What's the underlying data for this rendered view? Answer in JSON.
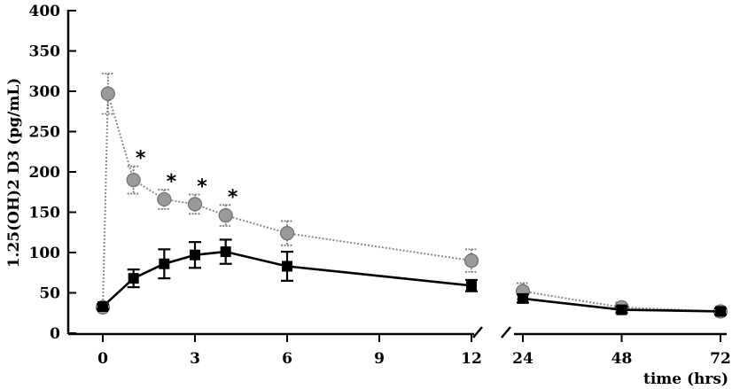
{
  "chart_data": {
    "type": "line",
    "ylabel": "1.25(OH)2 D3 (pg/mL)",
    "xlabel": "time (hrs)",
    "ylim": [
      0,
      400
    ],
    "yticks": [
      0,
      50,
      100,
      150,
      200,
      250,
      300,
      350,
      400
    ],
    "xticks_left": [
      0,
      3,
      6,
      9,
      12
    ],
    "xticks_right": [
      24,
      48,
      72
    ],
    "x_axis_broken_between": [
      12,
      24
    ],
    "significance_marker": "*",
    "significance_at_x": [
      1,
      2,
      3,
      4
    ],
    "series": [
      {
        "style": "dotted-gray-diamond",
        "color": "#8a8a8a",
        "x": [
          0,
          0.167,
          1,
          2,
          3,
          4,
          6,
          12,
          24,
          48,
          72
        ],
        "y": [
          32,
          297,
          190,
          166,
          160,
          146,
          124,
          90,
          52,
          32,
          27
        ],
        "err": [
          3,
          25,
          17,
          12,
          12,
          13,
          15,
          14,
          10,
          6,
          4
        ]
      },
      {
        "style": "solid-black-square",
        "color": "#000000",
        "x": [
          0,
          1,
          2,
          3,
          4,
          6,
          12,
          24,
          48,
          72
        ],
        "y": [
          33,
          68,
          86,
          97,
          101,
          83,
          59,
          43,
          29,
          27
        ],
        "err": [
          3,
          11,
          18,
          16,
          15,
          18,
          7,
          5,
          4,
          4
        ]
      }
    ]
  }
}
